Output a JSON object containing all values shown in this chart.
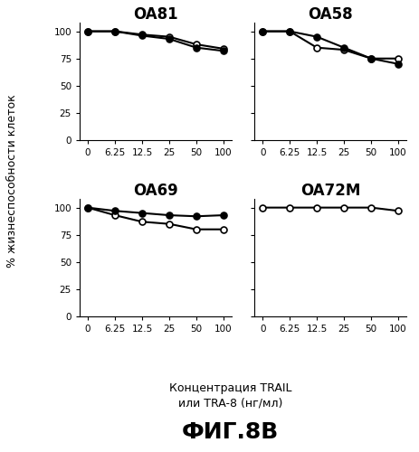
{
  "x_values": [
    0,
    6.25,
    12.5,
    25,
    50,
    100
  ],
  "subplots": [
    {
      "title": "OA81",
      "open_circle": [
        100,
        100,
        97,
        95,
        88,
        84
      ],
      "filled_circle": [
        100,
        100,
        96,
        93,
        85,
        82
      ]
    },
    {
      "title": "OA58",
      "open_circle": [
        100,
        100,
        85,
        83,
        75,
        75
      ],
      "filled_circle": [
        100,
        100,
        95,
        85,
        75,
        70
      ]
    },
    {
      "title": "OA69",
      "open_circle": [
        100,
        93,
        87,
        85,
        80,
        80
      ],
      "filled_circle": [
        100,
        97,
        95,
        93,
        92,
        93
      ]
    },
    {
      "title": "OA72M",
      "open_circle": [
        100,
        100,
        100,
        100,
        100,
        97
      ],
      "filled_circle": null
    }
  ],
  "ylabel": "% жизнеспособности клеток",
  "xlabel_line1": "Концентрация TRAIL",
  "xlabel_line2": "или TRA-8 (нг/мл)",
  "fig_label": "ФИГ.8B",
  "ylim": [
    0,
    108
  ],
  "yticks": [
    0,
    25,
    50,
    75,
    100
  ],
  "xtick_labels": [
    "0",
    "6.25",
    "12.5",
    "25",
    "50",
    "100"
  ],
  "background_color": "#ffffff",
  "line_color": "#000000",
  "title_fontsize": 12,
  "tick_fontsize": 7.5,
  "label_fontsize": 9,
  "fig_label_fontsize": 18,
  "marker_size": 5,
  "line_width": 1.5
}
